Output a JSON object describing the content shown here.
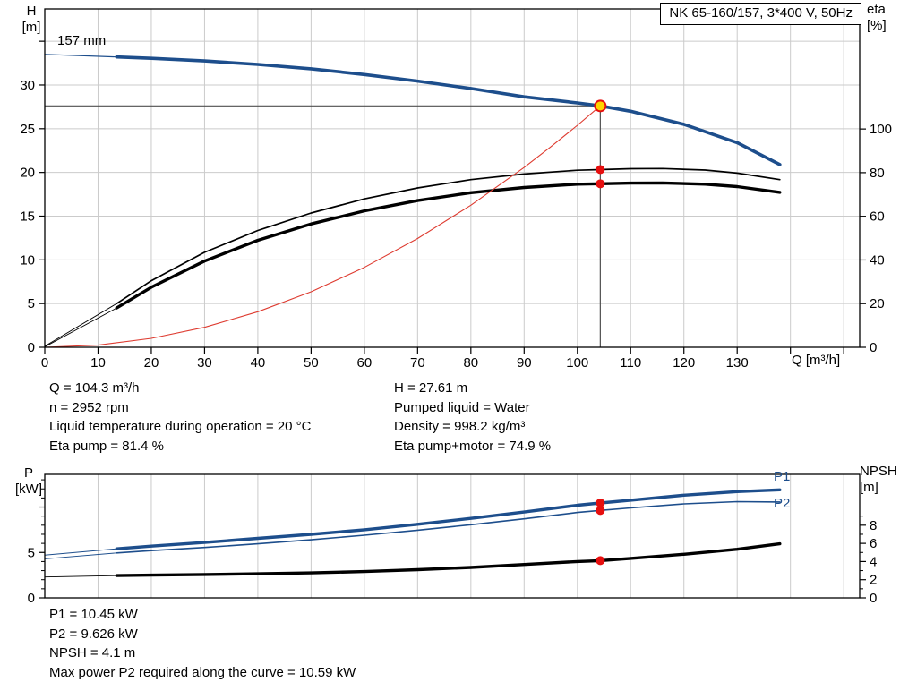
{
  "info_block": {
    "left": [
      "Q = 104.3 m³/h",
      "n = 2952 rpm",
      "Liquid temperature during operation = 20 °C",
      "Eta pump = 81.4 %"
    ],
    "right": [
      "H = 27.61 m",
      "Pumped liquid = Water",
      "Density = 998.2 kg/m³",
      "Eta pump+motor = 74.9 %"
    ]
  },
  "footer_block": [
    "P1 = 10.45 kW",
    "P2 = 9.626 kW",
    "NPSH = 4.1 m",
    "Max power P2 required along the curve = 10.59 kW"
  ],
  "colors": {
    "curve_blue": "#1d4e8c",
    "curve_black": "#000000",
    "curve_red": "#de3b30",
    "dot_red": "#e60f0f",
    "duty_yellow": "#ffd400",
    "grid": "#cbcbcb",
    "guide": "#4f4f4f",
    "axis": "#000000"
  },
  "chart_data": [
    {
      "type": "line",
      "title": "NK 65-160/157, 3*400 V, 50Hz",
      "annotation": "157 mm",
      "x_label": "Q [m³/h]",
      "y_left_label": [
        "H",
        "[m]"
      ],
      "y_right_label": [
        "eta",
        "[%]"
      ],
      "xlim": [
        0,
        153
      ],
      "ylim_left": [
        0,
        38.7
      ],
      "ylim_right": [
        0,
        155
      ],
      "x_ticks": [
        {
          "v": 0,
          "l": "0"
        },
        {
          "v": 10,
          "l": "10"
        },
        {
          "v": 20,
          "l": "20"
        },
        {
          "v": 30,
          "l": "30"
        },
        {
          "v": 40,
          "l": "40"
        },
        {
          "v": 50,
          "l": "50"
        },
        {
          "v": 60,
          "l": "60"
        },
        {
          "v": 70,
          "l": "70"
        },
        {
          "v": 80,
          "l": "80"
        },
        {
          "v": 90,
          "l": "90"
        },
        {
          "v": 100,
          "l": "100"
        },
        {
          "v": 110,
          "l": "110"
        },
        {
          "v": 120,
          "l": "120"
        },
        {
          "v": 130,
          "l": "130"
        },
        {
          "v": 140
        },
        {
          "v": 150
        }
      ],
      "x_grid": [
        10,
        20,
        30,
        40,
        50,
        60,
        70,
        80,
        90,
        100,
        110,
        120,
        130,
        140,
        150
      ],
      "left_ticks": [
        {
          "v": 0,
          "l": "0"
        },
        {
          "v": 5,
          "l": "5"
        },
        {
          "v": 10,
          "l": "10"
        },
        {
          "v": 15,
          "l": "15"
        },
        {
          "v": 20,
          "l": "20"
        },
        {
          "v": 25,
          "l": "25"
        },
        {
          "v": 30,
          "l": "30"
        },
        {
          "v": 35
        }
      ],
      "left_grid": [
        5,
        10,
        15,
        20,
        25,
        30,
        35
      ],
      "right_ticks": [
        {
          "v": 0,
          "l": "0"
        },
        {
          "v": 20,
          "l": "20"
        },
        {
          "v": 40,
          "l": "40"
        },
        {
          "v": 60,
          "l": "60"
        },
        {
          "v": 80,
          "l": "80"
        },
        {
          "v": 100,
          "l": "100"
        }
      ],
      "guides": {
        "q": 104.3,
        "h": 27.61
      },
      "series": [
        {
          "name": "head-curve-lead",
          "axis": "left",
          "color": "#1d4e8c",
          "width": 1.2,
          "points": [
            [
              0,
              33.5
            ],
            [
              13.5,
              33.2
            ]
          ]
        },
        {
          "name": "head-curve",
          "axis": "left",
          "color": "#1d4e8c",
          "width": 3.6,
          "points": [
            [
              13.5,
              33.2
            ],
            [
              20,
              33.05
            ],
            [
              30,
              32.75
            ],
            [
              40,
              32.35
            ],
            [
              50,
              31.85
            ],
            [
              60,
              31.2
            ],
            [
              70,
              30.45
            ],
            [
              80,
              29.6
            ],
            [
              90,
              28.65
            ],
            [
              100,
              27.95
            ],
            [
              104.3,
              27.61
            ],
            [
              110,
              27.0
            ],
            [
              120,
              25.5
            ],
            [
              130,
              23.4
            ],
            [
              138,
              20.9
            ]
          ]
        },
        {
          "name": "eta-pump-lead",
          "axis": "right",
          "color": "#000000",
          "width": 0.9,
          "points": [
            [
              0,
              0.5
            ],
            [
              13.5,
              20
            ]
          ]
        },
        {
          "name": "eta-pump-curve",
          "axis": "right",
          "color": "#000000",
          "width": 1.7,
          "points": [
            [
              13.5,
              20
            ],
            [
              20,
              30.5
            ],
            [
              30,
              43.5
            ],
            [
              40,
              53.5
            ],
            [
              50,
              61.5
            ],
            [
              60,
              68
            ],
            [
              70,
              73
            ],
            [
              80,
              76.8
            ],
            [
              90,
              79.4
            ],
            [
              100,
              81.1
            ],
            [
              104.3,
              81.4
            ],
            [
              110,
              81.8
            ],
            [
              116,
              81.9
            ],
            [
              124,
              81.2
            ],
            [
              130,
              79.8
            ],
            [
              138,
              76.8
            ]
          ]
        },
        {
          "name": "eta-pump-motor-lead",
          "axis": "right",
          "color": "#000000",
          "width": 0.9,
          "points": [
            [
              0,
              0.2
            ],
            [
              13.5,
              18
            ]
          ]
        },
        {
          "name": "eta-pump-motor-curve",
          "axis": "right",
          "color": "#000000",
          "width": 3.4,
          "points": [
            [
              13.5,
              18
            ],
            [
              20,
              27.5
            ],
            [
              30,
              39.5
            ],
            [
              40,
              49
            ],
            [
              50,
              56.5
            ],
            [
              60,
              62.5
            ],
            [
              70,
              67.2
            ],
            [
              80,
              70.8
            ],
            [
              90,
              73.2
            ],
            [
              100,
              74.7
            ],
            [
              104.3,
              74.9
            ],
            [
              110,
              75.2
            ],
            [
              116,
              75.3
            ],
            [
              124,
              74.7
            ],
            [
              130,
              73.6
            ],
            [
              138,
              71.0
            ]
          ]
        },
        {
          "name": "system-curve",
          "axis": "left",
          "color": "#de3b30",
          "width": 1.1,
          "points": [
            [
              0,
              0
            ],
            [
              10,
              0.25
            ],
            [
              20,
              1.02
            ],
            [
              30,
              2.28
            ],
            [
              40,
              4.06
            ],
            [
              50,
              6.35
            ],
            [
              60,
              9.14
            ],
            [
              70,
              12.44
            ],
            [
              80,
              16.25
            ],
            [
              90,
              20.57
            ],
            [
              95,
              22.92
            ],
            [
              100,
              25.39
            ],
            [
              104.3,
              27.61
            ]
          ]
        }
      ],
      "markers": [
        {
          "name": "eta-pump-point",
          "axis": "right",
          "x": 104.3,
          "y": 81.4,
          "r": 5,
          "fill": "#e60f0f"
        },
        {
          "name": "eta-pump-motor-point",
          "axis": "right",
          "x": 104.3,
          "y": 74.9,
          "r": 5,
          "fill": "#e60f0f"
        },
        {
          "name": "duty-point",
          "axis": "left",
          "x": 104.3,
          "y": 27.61,
          "r": 6,
          "fill": "#ffd400",
          "stroke": "#e60f0f",
          "stroke_width": 2
        }
      ]
    },
    {
      "type": "line",
      "x_label": "",
      "y_left_label": [
        "P",
        "[kW]"
      ],
      "y_right_label": [
        "NPSH",
        "[m]"
      ],
      "series_labels": [
        "P1",
        "P2"
      ],
      "xlim": [
        0,
        153
      ],
      "ylim_left": [
        0,
        13.6
      ],
      "ylim_right": [
        0,
        13.6
      ],
      "x_grid": [
        10,
        20,
        30,
        40,
        50,
        60,
        70,
        80,
        90,
        100,
        110,
        120,
        130,
        140,
        150
      ],
      "left_ticks": [
        {
          "v": 0,
          "l": "0"
        },
        {
          "v": 5,
          "l": "5"
        },
        {
          "v": 10
        }
      ],
      "left_minor": [
        1,
        2,
        3,
        4,
        6,
        7,
        8,
        9,
        11,
        12,
        13
      ],
      "right_ticks": [
        {
          "v": 0,
          "l": "0"
        },
        {
          "v": 2,
          "l": "2"
        },
        {
          "v": 4,
          "l": "4"
        },
        {
          "v": 6,
          "l": "6"
        },
        {
          "v": 8,
          "l": "8"
        }
      ],
      "right_minor": [
        1,
        3,
        5,
        7,
        9
      ],
      "series": [
        {
          "name": "p1-lead",
          "axis": "left",
          "color": "#1d4e8c",
          "width": 1.0,
          "points": [
            [
              0,
              4.7
            ],
            [
              13.5,
              5.4
            ]
          ]
        },
        {
          "name": "p1-curve",
          "axis": "left",
          "color": "#1d4e8c",
          "width": 3.4,
          "points": [
            [
              13.5,
              5.4
            ],
            [
              20,
              5.7
            ],
            [
              30,
              6.1
            ],
            [
              40,
              6.55
            ],
            [
              50,
              7.0
            ],
            [
              60,
              7.5
            ],
            [
              70,
              8.1
            ],
            [
              80,
              8.75
            ],
            [
              90,
              9.45
            ],
            [
              100,
              10.2
            ],
            [
              104.3,
              10.45
            ],
            [
              110,
              10.75
            ],
            [
              120,
              11.3
            ],
            [
              130,
              11.7
            ],
            [
              138,
              11.9
            ]
          ]
        },
        {
          "name": "p2-lead",
          "axis": "left",
          "color": "#1d4e8c",
          "width": 0.9,
          "points": [
            [
              0,
              4.3
            ],
            [
              13.5,
              4.95
            ]
          ]
        },
        {
          "name": "p2-curve",
          "axis": "left",
          "color": "#1d4e8c",
          "width": 1.6,
          "points": [
            [
              13.5,
              4.95
            ],
            [
              20,
              5.2
            ],
            [
              30,
              5.55
            ],
            [
              40,
              5.95
            ],
            [
              50,
              6.4
            ],
            [
              60,
              6.9
            ],
            [
              70,
              7.45
            ],
            [
              80,
              8.05
            ],
            [
              90,
              8.7
            ],
            [
              100,
              9.4
            ],
            [
              104.3,
              9.626
            ],
            [
              110,
              9.9
            ],
            [
              120,
              10.35
            ],
            [
              130,
              10.59
            ],
            [
              138,
              10.55
            ]
          ]
        },
        {
          "name": "npsh-lead",
          "axis": "right",
          "color": "#000000",
          "width": 0.9,
          "points": [
            [
              0,
              2.3
            ],
            [
              13.5,
              2.45
            ]
          ]
        },
        {
          "name": "npsh-curve",
          "axis": "right",
          "color": "#000000",
          "width": 3.4,
          "points": [
            [
              13.5,
              2.45
            ],
            [
              20,
              2.5
            ],
            [
              30,
              2.57
            ],
            [
              40,
              2.65
            ],
            [
              50,
              2.75
            ],
            [
              60,
              2.9
            ],
            [
              70,
              3.1
            ],
            [
              80,
              3.35
            ],
            [
              90,
              3.68
            ],
            [
              100,
              4.0
            ],
            [
              104.3,
              4.1
            ],
            [
              110,
              4.35
            ],
            [
              120,
              4.8
            ],
            [
              130,
              5.35
            ],
            [
              138,
              5.95
            ]
          ]
        }
      ],
      "markers": [
        {
          "name": "p1-point",
          "axis": "left",
          "x": 104.3,
          "y": 10.45,
          "r": 5,
          "fill": "#e60f0f"
        },
        {
          "name": "p2-point",
          "axis": "left",
          "x": 104.3,
          "y": 9.626,
          "r": 5,
          "fill": "#e60f0f"
        },
        {
          "name": "npsh-point",
          "axis": "right",
          "x": 104.3,
          "y": 4.1,
          "r": 5,
          "fill": "#e60f0f"
        }
      ]
    }
  ]
}
